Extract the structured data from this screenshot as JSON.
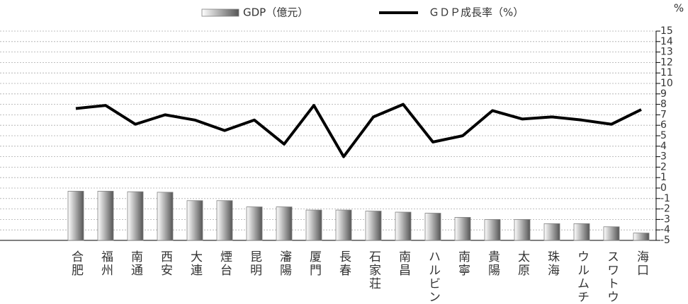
{
  "chart_data": {
    "type": "bar",
    "y_label": "%",
    "categories": [
      "合肥",
      "福州",
      "南通",
      "西安",
      "大連",
      "煙台",
      "昆明",
      "瀋陽",
      "厦門",
      "長春",
      "石家荘",
      "南昌",
      "ハルビン",
      "南寧",
      "貴陽",
      "太原",
      "珠海",
      "ウルムチ",
      "スワトウ",
      "海口"
    ],
    "series": [
      {
        "name": "GDP（億元）",
        "type": "bar",
        "color": "#808080",
        "values": [
          -0.3,
          -0.3,
          -0.35,
          -0.4,
          -1.2,
          -1.2,
          -1.8,
          -1.8,
          -2.1,
          -2.1,
          -2.2,
          -2.3,
          -2.4,
          -2.8,
          -3.0,
          -3.0,
          -3.4,
          -3.4,
          -3.7,
          -4.3
        ]
      },
      {
        "name": "ＧＤＰ成長率（%）",
        "type": "line",
        "color": "#000000",
        "values": [
          7.6,
          7.9,
          6.1,
          7.0,
          6.5,
          5.5,
          6.5,
          4.2,
          7.9,
          3.0,
          6.8,
          8.0,
          4.4,
          5.0,
          7.4,
          6.6,
          6.8,
          6.5,
          6.1,
          7.5
        ]
      }
    ],
    "ylim": [
      -5,
      15
    ],
    "yticks": [
      -5,
      -4,
      -3,
      -2,
      -1,
      0,
      1,
      2,
      3,
      4,
      5,
      6,
      7,
      8,
      9,
      10,
      11,
      12,
      13,
      14,
      15
    ],
    "grid": true
  }
}
